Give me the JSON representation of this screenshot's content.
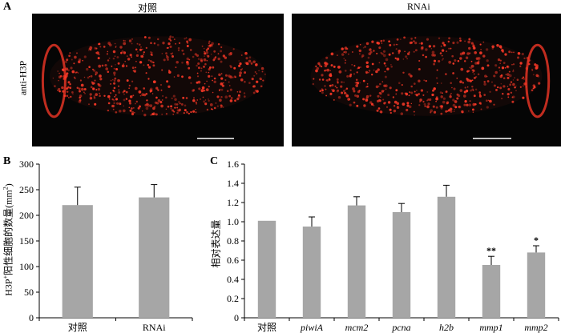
{
  "panel_a": {
    "letter": "A",
    "left_title": "对照",
    "right_title": "RNAi",
    "side_label": "anti-H3P"
  },
  "panel_b": {
    "letter": "B",
    "ylabel_prefix": "H3P",
    "ylabel_sup": "+",
    "ylabel_mid": "阳性细胞的数量(mm",
    "ylabel_sup2": "2",
    "ylabel_suffix": ")"
  },
  "panel_c": {
    "letter": "C",
    "ylabel": "相对表达量"
  },
  "colors": {
    "bar": "#a6a6a6",
    "cell_red": "#ff3a28",
    "micro_bg": "#050505"
  },
  "chart_data": [
    {
      "type": "bar",
      "categories": [
        "对照",
        "RNAi"
      ],
      "values": [
        220,
        235
      ],
      "errors": [
        35,
        25
      ],
      "ylim": [
        0,
        300
      ],
      "yticks": [
        0,
        50,
        100,
        150,
        200,
        250,
        300
      ],
      "ylabel": "H3P+阳性细胞的数量(mm2)",
      "xlabel": "",
      "grid": false
    },
    {
      "type": "bar",
      "categories": [
        "对照",
        "piwiA",
        "mcm2",
        "pcna",
        "h2b",
        "mmp1",
        "mmp2"
      ],
      "italic": [
        false,
        true,
        true,
        true,
        true,
        true,
        true
      ],
      "values": [
        1.01,
        0.95,
        1.17,
        1.1,
        1.26,
        0.55,
        0.68
      ],
      "errors": [
        0,
        0.1,
        0.09,
        0.09,
        0.12,
        0.09,
        0.07
      ],
      "significance": [
        "",
        "",
        "",
        "",
        "",
        "**",
        "*"
      ],
      "ylim": [
        0,
        1.6
      ],
      "yticks": [
        "0",
        "0.2",
        "0.4",
        "0.6",
        "0.8",
        "1.0",
        "1.2",
        "1.4",
        "1.6"
      ],
      "ylabel": "相对表达量",
      "xlabel": "",
      "grid": false
    }
  ]
}
